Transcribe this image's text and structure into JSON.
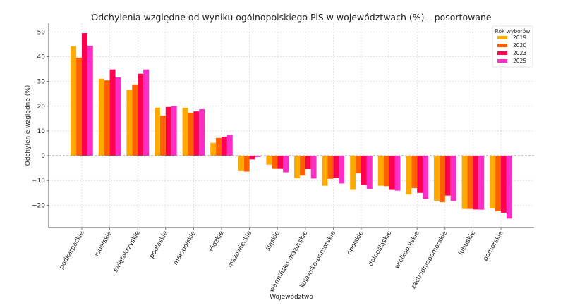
{
  "chart_data": {
    "type": "bar",
    "title": "Odchylenia względne od wyniku ogólnopolskiego PiS w województwach (%) – posortowane",
    "xlabel": "Województwo",
    "ylabel": "Odchylenie względne (%)",
    "ylim": [
      -29,
      53.5
    ],
    "yticks": [
      -20,
      -10,
      0,
      10,
      20,
      30,
      40,
      50
    ],
    "ytick_labels": [
      "−20",
      "−10",
      "0",
      "10",
      "20",
      "30",
      "40",
      "50"
    ],
    "grid": true,
    "zero_line": true,
    "legend": {
      "title": "Rok wyborów",
      "position": "top-right"
    },
    "categories": [
      "podkarpackie",
      "lubelskie",
      "świętokrzyskie",
      "podlaskie",
      "małopolskie",
      "łódzkie",
      "mazowieckie",
      "śląskie",
      "warmińsko-mazurskie",
      "kujawsko-pomorskie",
      "opolskie",
      "dolnośląskie",
      "wielkopolskie",
      "zachodniopomorskie",
      "lubuskie",
      "pomorskie"
    ],
    "series": [
      {
        "name": "2019",
        "color": "#FFAA00",
        "values": [
          44.2,
          31.1,
          26.5,
          19.4,
          19.4,
          5.2,
          -6.2,
          -3.6,
          -9.1,
          -12.1,
          -13.8,
          -12.1,
          -15.7,
          -18.2,
          -21.5,
          -21.3
        ]
      },
      {
        "name": "2020",
        "color": "#FF6000",
        "values": [
          39.6,
          30.4,
          28.8,
          16.2,
          17.4,
          7.2,
          -6.4,
          -5.3,
          -8.0,
          -9.3,
          -7.1,
          -12.3,
          -13.1,
          -18.8,
          -21.5,
          -22.4
        ]
      },
      {
        "name": "2023",
        "color": "#FF0050",
        "values": [
          49.5,
          34.8,
          33.1,
          19.7,
          17.9,
          7.7,
          -1.5,
          -5.3,
          -5.4,
          -8.9,
          -11.8,
          -13.8,
          -15.0,
          -16.1,
          -21.7,
          -23.0
        ]
      },
      {
        "name": "2025",
        "color": "#FF2DC8",
        "values": [
          44.4,
          31.6,
          34.8,
          20.1,
          18.8,
          8.4,
          -0.5,
          -6.7,
          -9.2,
          -11.2,
          -13.4,
          -14.1,
          -17.4,
          -18.3,
          -21.8,
          -25.4
        ]
      }
    ]
  }
}
